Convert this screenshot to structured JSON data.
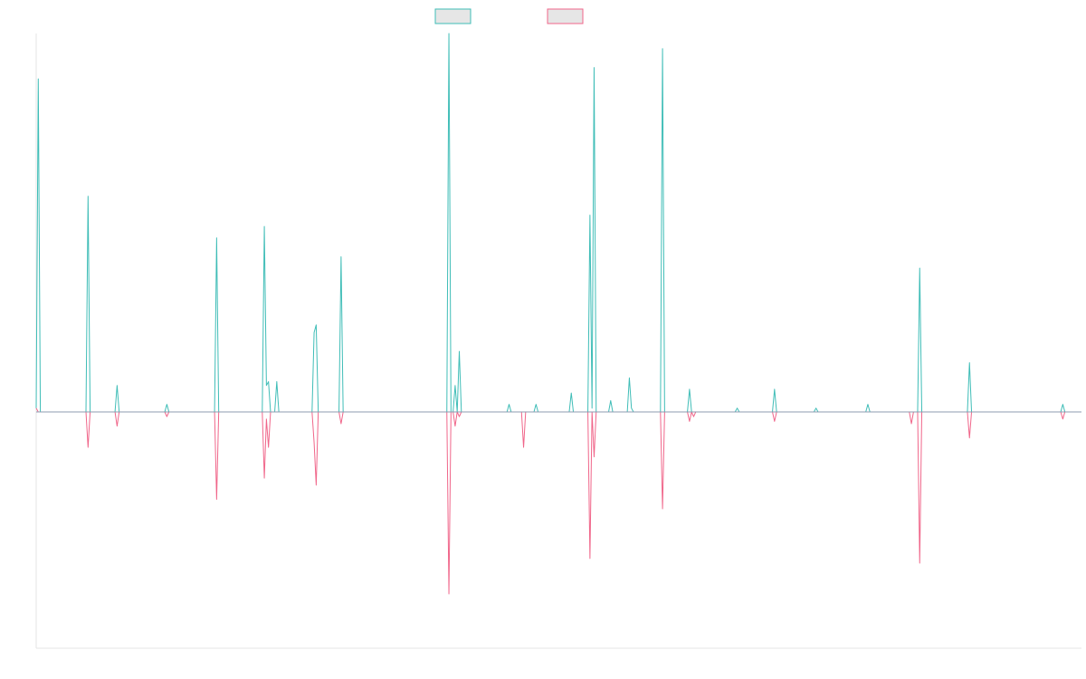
{
  "chart_data": {
    "type": "line",
    "title": "",
    "xlabel": "",
    "ylabel": "",
    "legend": "top-center",
    "grid": false,
    "ylim": [
      -1.0,
      1.0
    ],
    "colors": {
      "series_a": "#3fbdb7",
      "series_b": "#f0668a",
      "zero_line": "#8c9bb0",
      "swatch_fill": "#e6e6e6"
    },
    "series": [
      {
        "name": "",
        "color": "#3fbdb7",
        "values": [
          [
            0,
            0.01
          ],
          [
            1,
            0.88
          ],
          [
            2,
            0
          ],
          [
            14,
            0
          ],
          [
            15,
            0
          ],
          [
            16,
            0
          ],
          [
            17,
            0
          ],
          [
            24,
            0
          ],
          [
            25,
            0.57
          ],
          [
            26,
            0
          ],
          [
            27,
            0
          ],
          [
            30,
            0
          ],
          [
            31,
            0
          ],
          [
            38,
            0
          ],
          [
            39,
            0.07
          ],
          [
            40,
            0
          ],
          [
            62,
            0
          ],
          [
            63,
            0.02
          ],
          [
            64,
            0
          ],
          [
            74,
            0
          ],
          [
            75,
            0
          ],
          [
            76,
            0
          ],
          [
            86,
            0
          ],
          [
            87,
            0.46
          ],
          [
            88,
            0
          ],
          [
            109,
            0
          ],
          [
            110,
            0.49
          ],
          [
            111,
            0.07
          ],
          [
            112,
            0.08
          ],
          [
            113,
            0
          ],
          [
            115,
            0
          ],
          [
            116,
            0.08
          ],
          [
            117,
            0
          ],
          [
            118,
            0
          ],
          [
            119,
            0
          ],
          [
            120,
            0
          ],
          [
            127,
            0
          ],
          [
            128,
            0
          ],
          [
            129,
            0
          ],
          [
            133,
            0
          ],
          [
            134,
            0.21
          ],
          [
            135,
            0.23
          ],
          [
            136,
            0
          ],
          [
            146,
            0
          ],
          [
            147,
            0.41
          ],
          [
            148,
            0
          ],
          [
            198,
            0
          ],
          [
            199,
            1.0
          ],
          [
            200,
            0
          ],
          [
            201,
            0
          ],
          [
            202,
            0.07
          ],
          [
            203,
            0
          ],
          [
            204,
            0.16
          ],
          [
            205,
            0
          ],
          [
            227,
            0
          ],
          [
            228,
            0.02
          ],
          [
            229,
            0
          ],
          [
            234,
            0
          ],
          [
            235,
            0
          ],
          [
            236,
            0
          ],
          [
            240,
            0
          ],
          [
            241,
            0.02
          ],
          [
            242,
            0
          ],
          [
            257,
            0
          ],
          [
            258,
            0.05
          ],
          [
            259,
            0
          ],
          [
            266,
            0
          ],
          [
            267,
            0.52
          ],
          [
            268,
            0.01
          ],
          [
            269,
            0.91
          ],
          [
            270,
            0
          ],
          [
            276,
            0
          ],
          [
            277,
            0.03
          ],
          [
            278,
            0
          ],
          [
            285,
            0
          ],
          [
            286,
            0.09
          ],
          [
            287,
            0.01
          ],
          [
            288,
            0
          ],
          [
            293,
            0
          ],
          [
            294,
            0
          ],
          [
            295,
            0
          ],
          [
            301,
            0
          ],
          [
            302,
            0.96
          ],
          [
            303,
            0
          ],
          [
            314,
            0
          ],
          [
            315,
            0.06
          ],
          [
            316,
            0
          ],
          [
            317,
            0
          ],
          [
            318,
            0
          ],
          [
            337,
            0
          ],
          [
            338,
            0.01
          ],
          [
            339,
            0
          ],
          [
            355,
            0
          ],
          [
            356,
            0.06
          ],
          [
            357,
            0
          ],
          [
            375,
            0
          ],
          [
            376,
            0.01
          ],
          [
            377,
            0
          ],
          [
            400,
            0
          ],
          [
            401,
            0.02
          ],
          [
            402,
            0
          ],
          [
            416,
            0
          ],
          [
            417,
            0
          ],
          [
            418,
            0
          ],
          [
            421,
            0
          ],
          [
            422,
            0
          ],
          [
            423,
            0
          ],
          [
            425,
            0
          ],
          [
            426,
            0.38
          ],
          [
            427,
            0
          ],
          [
            449,
            0
          ],
          [
            450,
            0.13
          ],
          [
            451,
            0
          ],
          [
            470,
            0
          ],
          [
            471,
            0
          ],
          [
            472,
            0
          ],
          [
            494,
            0
          ],
          [
            495,
            0.02
          ],
          [
            496,
            0
          ],
          [
            504,
            0
          ]
        ]
      },
      {
        "name": "",
        "color": "#f0668a",
        "values": [
          [
            0,
            0.01
          ],
          [
            1,
            0
          ],
          [
            2,
            0
          ],
          [
            14,
            0
          ],
          [
            15,
            0
          ],
          [
            16,
            0
          ],
          [
            17,
            0
          ],
          [
            24,
            0
          ],
          [
            25,
            -0.15
          ],
          [
            26,
            0
          ],
          [
            27,
            0
          ],
          [
            30,
            0
          ],
          [
            31,
            0
          ],
          [
            38,
            0
          ],
          [
            39,
            -0.06
          ],
          [
            40,
            0
          ],
          [
            62,
            0
          ],
          [
            63,
            -0.02
          ],
          [
            64,
            0
          ],
          [
            74,
            0
          ],
          [
            75,
            0
          ],
          [
            76,
            0
          ],
          [
            86,
            0
          ],
          [
            87,
            -0.37
          ],
          [
            88,
            0
          ],
          [
            109,
            0
          ],
          [
            110,
            -0.28
          ],
          [
            111,
            -0.03
          ],
          [
            112,
            -0.15
          ],
          [
            113,
            0
          ],
          [
            115,
            0
          ],
          [
            116,
            0
          ],
          [
            117,
            0
          ],
          [
            118,
            0
          ],
          [
            119,
            0
          ],
          [
            120,
            0
          ],
          [
            127,
            0
          ],
          [
            128,
            0
          ],
          [
            129,
            0
          ],
          [
            133,
            0
          ],
          [
            134,
            -0.13
          ],
          [
            135,
            -0.31
          ],
          [
            136,
            0
          ],
          [
            146,
            0
          ],
          [
            147,
            -0.05
          ],
          [
            148,
            0
          ],
          [
            198,
            0
          ],
          [
            199,
            -0.77
          ],
          [
            200,
            0
          ],
          [
            201,
            0
          ],
          [
            202,
            -0.06
          ],
          [
            203,
            0
          ],
          [
            204,
            -0.02
          ],
          [
            205,
            0
          ],
          [
            227,
            0
          ],
          [
            228,
            0
          ],
          [
            229,
            0
          ],
          [
            234,
            0
          ],
          [
            235,
            -0.15
          ],
          [
            236,
            0
          ],
          [
            240,
            0
          ],
          [
            241,
            0
          ],
          [
            242,
            0
          ],
          [
            257,
            0
          ],
          [
            258,
            0
          ],
          [
            259,
            0
          ],
          [
            266,
            0
          ],
          [
            267,
            -0.62
          ],
          [
            268,
            0
          ],
          [
            269,
            -0.19
          ],
          [
            270,
            0
          ],
          [
            276,
            0
          ],
          [
            277,
            0
          ],
          [
            278,
            0
          ],
          [
            285,
            0
          ],
          [
            286,
            0
          ],
          [
            287,
            0
          ],
          [
            288,
            0
          ],
          [
            293,
            0
          ],
          [
            294,
            0
          ],
          [
            295,
            0
          ],
          [
            301,
            0
          ],
          [
            302,
            -0.41
          ],
          [
            303,
            0
          ],
          [
            314,
            0
          ],
          [
            315,
            -0.04
          ],
          [
            316,
            0
          ],
          [
            317,
            -0.02
          ],
          [
            318,
            0
          ],
          [
            337,
            0
          ],
          [
            338,
            0
          ],
          [
            339,
            0
          ],
          [
            355,
            0
          ],
          [
            356,
            -0.04
          ],
          [
            357,
            0
          ],
          [
            375,
            0
          ],
          [
            376,
            0
          ],
          [
            377,
            0
          ],
          [
            400,
            0
          ],
          [
            401,
            0
          ],
          [
            402,
            0
          ],
          [
            416,
            0
          ],
          [
            417,
            0
          ],
          [
            418,
            0
          ],
          [
            421,
            0
          ],
          [
            422,
            -0.05
          ],
          [
            423,
            0
          ],
          [
            425,
            0
          ],
          [
            426,
            -0.64
          ],
          [
            427,
            0
          ],
          [
            449,
            0
          ],
          [
            450,
            -0.11
          ],
          [
            451,
            0
          ],
          [
            470,
            0
          ],
          [
            471,
            0
          ],
          [
            472,
            0
          ],
          [
            494,
            0
          ],
          [
            495,
            -0.03
          ],
          [
            496,
            0
          ],
          [
            504,
            0
          ]
        ]
      }
    ]
  }
}
